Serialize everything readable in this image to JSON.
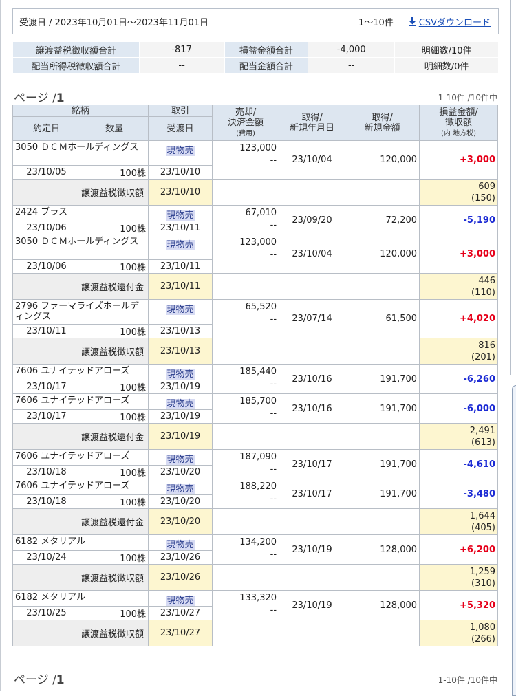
{
  "filter": {
    "range_text": "受渡日 / 2023年10月01日〜2023年11月01日",
    "count_text": "1〜10件",
    "csv_label": "CSVダウンロード",
    "csv_icon": "download-icon"
  },
  "summary": {
    "row1": [
      {
        "label": "譲渡益税徴収額合計",
        "value": "-817"
      },
      {
        "label": "損益金額合計",
        "value": "-4,000"
      },
      {
        "label": "",
        "value": "明細数/10件"
      }
    ],
    "row2": [
      {
        "label": "配当所得税徴収額合計",
        "value": "--"
      },
      {
        "label": "配当金額合計",
        "value": "--"
      },
      {
        "label": "",
        "value": "明細数/0件"
      }
    ]
  },
  "pager_top": {
    "prefix": "ページ /",
    "page": "1",
    "count": "1-10件 /10件中"
  },
  "pager_bottom": {
    "prefix": "ページ /",
    "page": "1",
    "count": "1-10件 /10件中"
  },
  "headers": {
    "meigara": "銘柄",
    "torihiki": "取引",
    "uri1": "売却/",
    "uri2": "決済金額",
    "uri3": "(費用)",
    "shutoku_date1": "取得/",
    "shutoku_date2": "新規年月日",
    "shutoku_amt1": "取得/",
    "shutoku_amt2": "新規金額",
    "pl1": "損益金額/",
    "pl2": "徴収額",
    "pl3": "(内 地方税)",
    "yakujo": "約定日",
    "suryo": "数量",
    "ukewatashi": "受渡日"
  },
  "rows": [
    {
      "type": "trade",
      "name": "3050 ＤＣＭホールディングス",
      "torihiki": "現物売",
      "uri": "123,000",
      "hiyo": "--",
      "shutoku_date": "23/10/04",
      "shutoku_amt": "120,000",
      "pl": "+3,000",
      "sign": "pos",
      "yakujo": "23/10/05",
      "suryo": "100株",
      "ukewatashi": "23/10/10",
      "tall": true
    },
    {
      "type": "tax",
      "label": "譲渡益税徴収額",
      "date": "23/10/10",
      "amt": "609",
      "local": "(150)"
    },
    {
      "type": "trade",
      "name": "2424 ブラス",
      "torihiki": "現物売",
      "uri": "67,010",
      "hiyo": "--",
      "shutoku_date": "23/09/20",
      "shutoku_amt": "72,200",
      "pl": "-5,190",
      "sign": "neg",
      "yakujo": "23/10/06",
      "suryo": "100株",
      "ukewatashi": "23/10/11",
      "tall": false
    },
    {
      "type": "trade",
      "name": "3050 ＤＣＭホールディングス",
      "torihiki": "現物売",
      "uri": "123,000",
      "hiyo": "--",
      "shutoku_date": "23/10/04",
      "shutoku_amt": "120,000",
      "pl": "+3,000",
      "sign": "pos",
      "yakujo": "23/10/06",
      "suryo": "100株",
      "ukewatashi": "23/10/11",
      "tall": true
    },
    {
      "type": "tax",
      "label": "譲渡益税還付金",
      "date": "23/10/11",
      "amt": "446",
      "local": "(110)"
    },
    {
      "type": "trade",
      "name": "2796 ファーマライズホールディングス",
      "torihiki": "現物売",
      "uri": "65,520",
      "hiyo": "--",
      "shutoku_date": "23/07/14",
      "shutoku_amt": "61,500",
      "pl": "+4,020",
      "sign": "pos",
      "yakujo": "23/10/11",
      "suryo": "100株",
      "ukewatashi": "23/10/13",
      "tall": true
    },
    {
      "type": "tax",
      "label": "譲渡益税徴収額",
      "date": "23/10/13",
      "amt": "816",
      "local": "(201)"
    },
    {
      "type": "trade",
      "name": "7606 ユナイテッドアローズ",
      "torihiki": "現物売",
      "uri": "185,440",
      "hiyo": "--",
      "shutoku_date": "23/10/16",
      "shutoku_amt": "191,700",
      "pl": "-6,260",
      "sign": "neg",
      "yakujo": "23/10/17",
      "suryo": "100株",
      "ukewatashi": "23/10/19",
      "tall": false
    },
    {
      "type": "trade",
      "name": "7606 ユナイテッドアローズ",
      "torihiki": "現物売",
      "uri": "185,700",
      "hiyo": "--",
      "shutoku_date": "23/10/16",
      "shutoku_amt": "191,700",
      "pl": "-6,000",
      "sign": "neg",
      "yakujo": "23/10/17",
      "suryo": "100株",
      "ukewatashi": "23/10/19",
      "tall": false
    },
    {
      "type": "tax",
      "label": "譲渡益税還付金",
      "date": "23/10/19",
      "amt": "2,491",
      "local": "(613)"
    },
    {
      "type": "trade",
      "name": "7606 ユナイテッドアローズ",
      "torihiki": "現物売",
      "uri": "187,090",
      "hiyo": "--",
      "shutoku_date": "23/10/17",
      "shutoku_amt": "191,700",
      "pl": "-4,610",
      "sign": "neg",
      "yakujo": "23/10/18",
      "suryo": "100株",
      "ukewatashi": "23/10/20",
      "tall": false
    },
    {
      "type": "trade",
      "name": "7606 ユナイテッドアローズ",
      "torihiki": "現物売",
      "uri": "188,220",
      "hiyo": "--",
      "shutoku_date": "23/10/17",
      "shutoku_amt": "191,700",
      "pl": "-3,480",
      "sign": "neg",
      "yakujo": "23/10/18",
      "suryo": "100株",
      "ukewatashi": "23/10/20",
      "tall": false
    },
    {
      "type": "tax",
      "label": "譲渡益税還付金",
      "date": "23/10/20",
      "amt": "1,644",
      "local": "(405)"
    },
    {
      "type": "trade",
      "name": "6182 メタリアル",
      "torihiki": "現物売",
      "uri": "134,200",
      "hiyo": "--",
      "shutoku_date": "23/10/19",
      "shutoku_amt": "128,000",
      "pl": "+6,200",
      "sign": "pos",
      "yakujo": "23/10/24",
      "suryo": "100株",
      "ukewatashi": "23/10/26",
      "tall": false
    },
    {
      "type": "tax",
      "label": "譲渡益税徴収額",
      "date": "23/10/26",
      "amt": "1,259",
      "local": "(310)"
    },
    {
      "type": "trade",
      "name": "6182 メタリアル",
      "torihiki": "現物売",
      "uri": "133,320",
      "hiyo": "--",
      "shutoku_date": "23/10/19",
      "shutoku_amt": "128,000",
      "pl": "+5,320",
      "sign": "pos",
      "yakujo": "23/10/25",
      "suryo": "100株",
      "ukewatashi": "23/10/27",
      "tall": false
    },
    {
      "type": "tax",
      "label": "譲渡益税徴収額",
      "date": "23/10/27",
      "amt": "1,080",
      "local": "(266)"
    }
  ]
}
